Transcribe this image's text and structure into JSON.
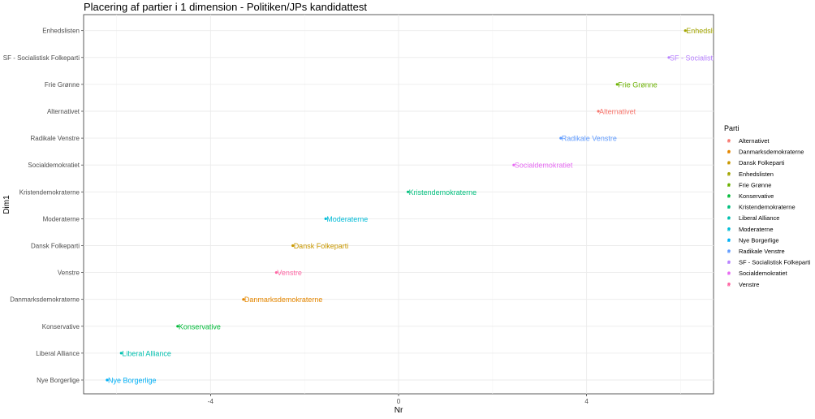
{
  "chart_data": {
    "type": "scatter",
    "title": "Placering af partier i 1 dimension - Politiken/JPs kandidattest",
    "xlabel": "Nr",
    "ylabel": "Dim1",
    "xlim": [
      -6.7,
      6.7
    ],
    "xticks": [
      -4,
      0,
      4
    ],
    "legend_title": "Parti",
    "categories_y": [
      "Nye Borgerlige",
      "Liberal Alliance",
      "Konservative",
      "Danmarksdemokraterne",
      "Venstre",
      "Dansk Folkeparti",
      "Moderaterne",
      "Kristendemokraterne",
      "Socialdemokratiet",
      "Radikale Venstre",
      "Alternativet",
      "Frie Grønne",
      "SF - Socialistisk Folkeparti",
      "Enhedslisten"
    ],
    "points": [
      {
        "party": "Nye Borgerlige",
        "label": "Nye Borgerlige",
        "x": -6.2
      },
      {
        "party": "Liberal Alliance",
        "label": "Liberal Alliance",
        "x": -5.9
      },
      {
        "party": "Konservative",
        "label": "Konservative",
        "x": -4.7
      },
      {
        "party": "Danmarksdemokraterne",
        "label": "Danmarksdemokraterne",
        "x": -3.3
      },
      {
        "party": "Venstre",
        "label": "Venstre",
        "x": -2.6
      },
      {
        "party": "Dansk Folkeparti",
        "label": "Dansk Folkeparti",
        "x": -2.25
      },
      {
        "party": "Moderaterne",
        "label": "Moderaterne",
        "x": -1.55
      },
      {
        "party": "Kristendemokraterne",
        "label": "Kristendemokraterne",
        "x": 0.2
      },
      {
        "party": "Socialdemokratiet",
        "label": "Socialdemokratiet",
        "x": 2.45
      },
      {
        "party": "Radikale Venstre",
        "label": "Radikale Venstre",
        "x": 3.45
      },
      {
        "party": "Alternativet",
        "label": "Alternativet",
        "x": 4.25
      },
      {
        "party": "Frie Grønne",
        "label": "Frie Grønne",
        "x": 4.65
      },
      {
        "party": "SF - Socialistisk Folkeparti",
        "label": "SF - Socialistisk Folkeparti",
        "x": 5.75
      },
      {
        "party": "Enhedslisten",
        "label": "Enhedslisten",
        "x": 6.1
      }
    ],
    "legend": [
      {
        "name": "Alternativet",
        "color": "#F8766D"
      },
      {
        "name": "Danmarksdemokraterne",
        "color": "#E58700"
      },
      {
        "name": "Dansk Folkeparti",
        "color": "#C99800"
      },
      {
        "name": "Enhedslisten",
        "color": "#A3A500"
      },
      {
        "name": "Frie Grønne",
        "color": "#6BB100"
      },
      {
        "name": "Konservative",
        "color": "#00BA38"
      },
      {
        "name": "Kristendemokraterne",
        "color": "#00BF7D"
      },
      {
        "name": "Liberal Alliance",
        "color": "#00C0AF"
      },
      {
        "name": "Moderaterne",
        "color": "#00BCD8"
      },
      {
        "name": "Nye Borgerlige",
        "color": "#00B0F6"
      },
      {
        "name": "Radikale Venstre",
        "color": "#619CFF"
      },
      {
        "name": "SF - Socialistisk Folkeparti",
        "color": "#B983FF"
      },
      {
        "name": "Socialdemokratiet",
        "color": "#E76BF3"
      },
      {
        "name": "Venstre",
        "color": "#FF67A4"
      }
    ]
  }
}
